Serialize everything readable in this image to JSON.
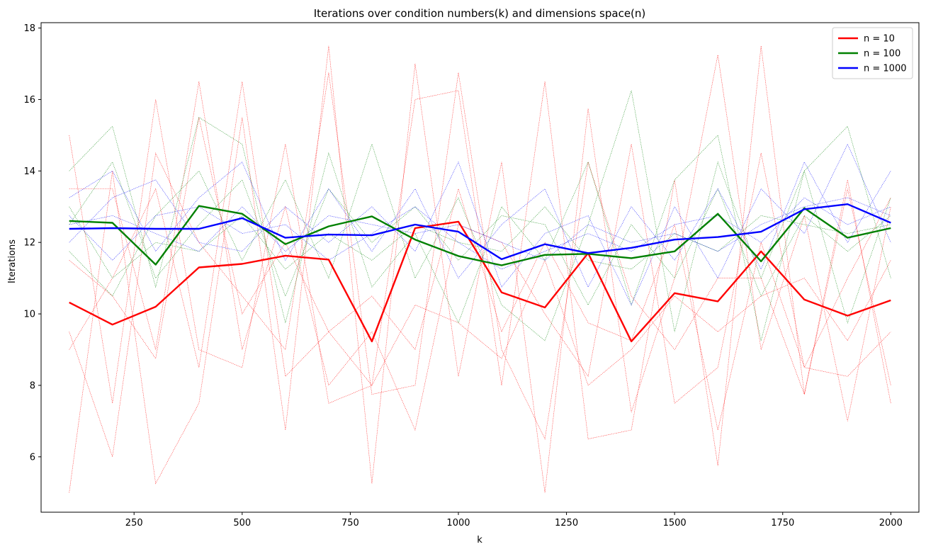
{
  "chart_data": {
    "type": "line",
    "title": "Iterations over condition numbers(k) and dimensions space(n)",
    "xlabel": "k",
    "ylabel": "Iterations",
    "x": [
      100,
      200,
      300,
      400,
      500,
      600,
      700,
      800,
      900,
      1000,
      1100,
      1200,
      1300,
      1400,
      1500,
      1600,
      1700,
      1800,
      1900,
      2000
    ],
    "xlim": [
      35,
      2065
    ],
    "ylim": [
      4.45,
      18.15
    ],
    "xticks": [
      250,
      500,
      750,
      1000,
      1250,
      1500,
      1750,
      2000
    ],
    "yticks": [
      6,
      8,
      10,
      12,
      14,
      16,
      18
    ],
    "grid": false,
    "legend_position": "top-right",
    "series": [
      {
        "name": "n = 10",
        "color": "#ff0000",
        "values": [
          10.32,
          9.7,
          10.2,
          11.3,
          11.4,
          11.63,
          11.52,
          9.23,
          12.4,
          12.58,
          10.6,
          10.18,
          11.7,
          9.23,
          10.58,
          10.35,
          11.75,
          10.4,
          9.95,
          10.38
        ]
      },
      {
        "name": "n = 100",
        "color": "#008000",
        "values": [
          12.6,
          12.55,
          11.38,
          13.02,
          12.8,
          11.95,
          12.45,
          12.73,
          12.08,
          11.62,
          11.36,
          11.65,
          11.68,
          11.56,
          11.75,
          12.8,
          11.47,
          12.96,
          12.13,
          12.4
        ]
      },
      {
        "name": "n = 1000",
        "color": "#0000ff",
        "values": [
          12.38,
          12.4,
          12.38,
          12.38,
          12.68,
          12.13,
          12.22,
          12.2,
          12.5,
          12.3,
          11.53,
          11.95,
          11.7,
          11.85,
          12.08,
          12.15,
          12.3,
          12.93,
          13.07,
          12.55
        ]
      }
    ],
    "runs": [
      {
        "group": "n = 10",
        "color": "#ff0000",
        "values": [
          15.0,
          7.5,
          16.0,
          9.0,
          8.5,
          14.75,
          7.5,
          8.0,
          16.0,
          16.25,
          8.0,
          16.5,
          6.5,
          6.75,
          13.75,
          5.75,
          17.5,
          7.75,
          13.75,
          7.5
        ]
      },
      {
        "group": "n = 10",
        "color": "#ff0000",
        "values": [
          5.0,
          14.0,
          5.25,
          7.5,
          15.5,
          6.75,
          17.5,
          5.25,
          17.0,
          8.25,
          14.25,
          5.0,
          15.75,
          7.25,
          11.0,
          17.25,
          9.0,
          12.75,
          7.0,
          13.0
        ]
      },
      {
        "group": "n = 10",
        "color": "#ff0000",
        "values": [
          9.5,
          6.0,
          14.5,
          12.0,
          10.5,
          9.0,
          16.75,
          7.75,
          8.0,
          16.75,
          9.0,
          6.5,
          14.25,
          10.5,
          9.0,
          11.0,
          11.0,
          7.75,
          13.5,
          8.0
        ]
      },
      {
        "group": "n = 10",
        "color": "#ff0000",
        "values": [
          13.5,
          13.5,
          9.0,
          16.5,
          9.0,
          13.0,
          8.0,
          9.5,
          6.75,
          12.5,
          12.0,
          10.0,
          8.25,
          14.75,
          7.5,
          8.5,
          14.5,
          8.5,
          8.25,
          9.5
        ]
      },
      {
        "group": "n = 10",
        "color": "#ff0000",
        "values": [
          9.0,
          11.0,
          13.5,
          8.5,
          16.5,
          8.25,
          9.5,
          10.5,
          9.0,
          13.5,
          9.5,
          12.0,
          9.75,
          9.25,
          12.5,
          6.75,
          12.0,
          8.5,
          11.0,
          13.25
        ]
      },
      {
        "group": "n = 10",
        "color": "#ff0000",
        "values": [
          11.5,
          10.5,
          8.75,
          15.5,
          10.0,
          12.0,
          9.5,
          8.0,
          10.25,
          9.75,
          8.75,
          11.5,
          8.0,
          9.0,
          10.5,
          9.5,
          10.5,
          11.0,
          9.25,
          11.5
        ]
      },
      {
        "group": "n = 100",
        "color": "#008000",
        "values": [
          14.0,
          15.25,
          10.75,
          15.5,
          14.75,
          9.75,
          14.5,
          10.75,
          12.25,
          9.75,
          13.0,
          11.5,
          14.25,
          10.25,
          13.75,
          15.0,
          9.25,
          14.0,
          9.75,
          13.25
        ]
      },
      {
        "group": "n = 100",
        "color": "#008000",
        "values": [
          11.75,
          10.5,
          12.75,
          14.0,
          11.5,
          13.75,
          11.0,
          14.75,
          11.0,
          13.25,
          10.25,
          9.25,
          12.5,
          16.25,
          9.5,
          14.25,
          11.0,
          14.0,
          15.25,
          11.0
        ]
      },
      {
        "group": "n = 100",
        "color": "#008000",
        "values": [
          12.5,
          14.25,
          11.0,
          12.5,
          13.75,
          10.5,
          13.5,
          12.0,
          13.0,
          11.5,
          12.75,
          12.5,
          10.25,
          12.5,
          11.0,
          13.5,
          10.5,
          12.75,
          11.75,
          12.75
        ]
      },
      {
        "group": "n = 100",
        "color": "#008000",
        "values": [
          13.0,
          11.0,
          12.0,
          11.75,
          12.75,
          11.25,
          12.25,
          11.5,
          12.5,
          12.0,
          11.75,
          13.0,
          11.5,
          11.25,
          12.25,
          11.75,
          12.75,
          12.5,
          12.25,
          12.5
        ]
      },
      {
        "group": "n = 1000",
        "color": "#0000ff",
        "values": [
          13.25,
          14.0,
          11.75,
          13.25,
          14.25,
          11.5,
          13.5,
          11.75,
          13.5,
          11.0,
          12.5,
          13.5,
          10.75,
          13.0,
          11.5,
          13.5,
          11.25,
          14.25,
          12.0,
          14.0
        ]
      },
      {
        "group": "n = 1000",
        "color": "#0000ff",
        "values": [
          12.0,
          13.25,
          13.75,
          12.0,
          11.75,
          13.0,
          12.0,
          13.0,
          11.75,
          14.25,
          10.75,
          12.25,
          12.75,
          10.25,
          13.0,
          11.0,
          13.5,
          12.25,
          14.75,
          12.0
        ]
      },
      {
        "group": "n = 1000",
        "color": "#0000ff",
        "values": [
          12.75,
          11.5,
          12.75,
          13.0,
          12.25,
          12.5,
          11.5,
          12.25,
          13.0,
          12.0,
          11.25,
          11.75,
          12.25,
          11.75,
          12.5,
          12.75,
          12.0,
          13.25,
          12.5,
          13.0
        ]
      },
      {
        "group": "n = 1000",
        "color": "#0000ff",
        "values": [
          12.5,
          12.75,
          12.25,
          11.75,
          13.0,
          11.75,
          12.75,
          12.5,
          12.25,
          12.5,
          12.0,
          11.5,
          12.5,
          12.0,
          12.25,
          11.75,
          12.5,
          13.0,
          13.25,
          12.75
        ]
      }
    ]
  }
}
